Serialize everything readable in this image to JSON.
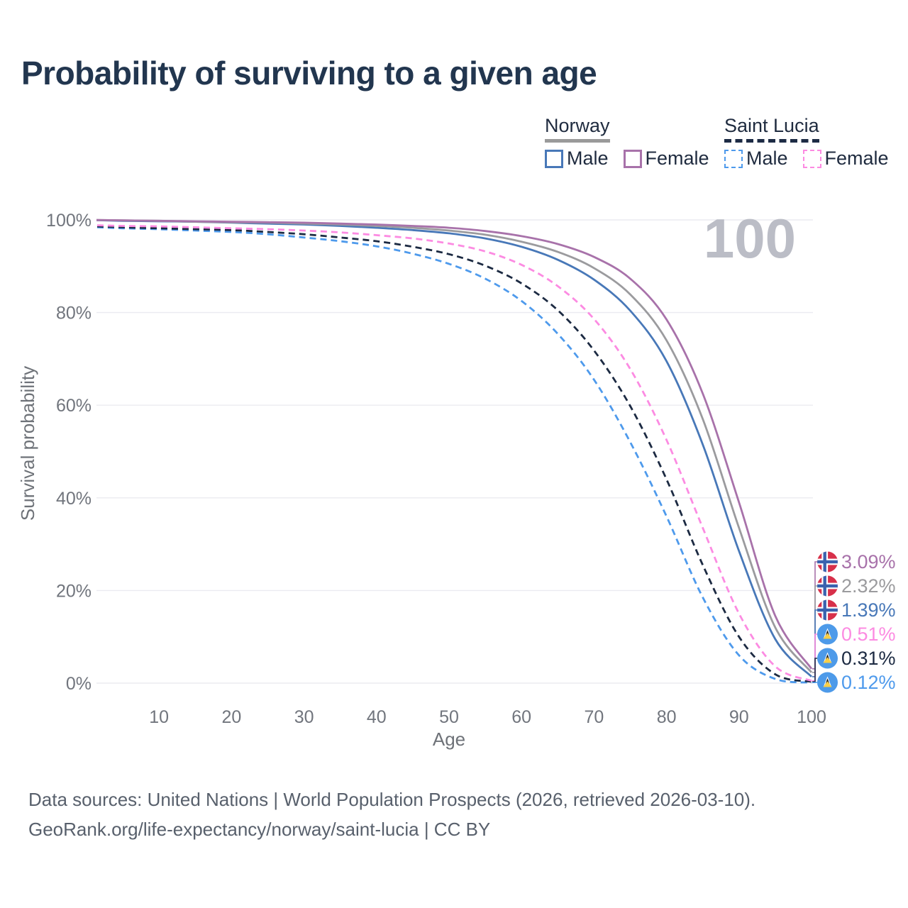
{
  "title": "Probability of surviving to a given age",
  "legend": {
    "norway": {
      "title": "Norway",
      "male": "Male",
      "female": "Female"
    },
    "saint_lucia": {
      "title": "Saint Lucia",
      "male": "Male",
      "female": "Female"
    }
  },
  "footer": {
    "line1": "Data sources: United Nations | World Population Prospects (2026, retrieved 2026-03-10).",
    "line2": "GeoRank.org/life-expectancy/norway/saint-lucia | CC BY"
  },
  "flags": {
    "norway": {
      "red": "#D7304A",
      "white": "#FFFFFF",
      "blue": "#3A62AE"
    },
    "saint_lucia": {
      "blue": "#4D9AE9",
      "white": "#FFFFFF",
      "black": "#15171A",
      "yellow": "#F8CE46"
    }
  },
  "chart_data": {
    "type": "line",
    "title": "Probability of surviving to a given age",
    "xlabel": "Age",
    "ylabel": "Survival probability",
    "xlim": [
      0,
      100
    ],
    "ylim": [
      0,
      100
    ],
    "grid": "horizontal",
    "legend_position": "top-right",
    "watermark": "100",
    "xticks": [
      10,
      20,
      30,
      40,
      50,
      60,
      70,
      80,
      90,
      100
    ],
    "ytick_values": [
      0,
      20,
      40,
      60,
      80,
      100
    ],
    "ytick_labels": [
      "0%",
      "20%",
      "40%",
      "60%",
      "80%",
      "100%"
    ],
    "ages": [
      0,
      5,
      10,
      15,
      20,
      25,
      30,
      35,
      40,
      45,
      50,
      55,
      60,
      65,
      70,
      75,
      80,
      85,
      90,
      95,
      100
    ],
    "series": [
      {
        "id": "norway-female",
        "name": "Norway Female",
        "country": "Norway",
        "sex": "Female",
        "color": "#A872AA",
        "dash": "solid",
        "flag": "norway",
        "end_label": "3.09%",
        "values": [
          100,
          99.9,
          99.8,
          99.7,
          99.6,
          99.5,
          99.4,
          99.2,
          99.0,
          98.7,
          98.3,
          97.6,
          96.5,
          94.8,
          92.0,
          87.3,
          78.5,
          62.5,
          39.0,
          14.5,
          3.09
        ]
      },
      {
        "id": "norway-total",
        "name": "Norway Both sexes",
        "country": "Norway",
        "sex": "Both",
        "color": "#9B9B9E",
        "dash": "solid",
        "flag": "norway",
        "end_label": "2.32%",
        "values": [
          100,
          99.9,
          99.8,
          99.6,
          99.5,
          99.4,
          99.2,
          99.0,
          98.7,
          98.3,
          97.7,
          96.8,
          95.3,
          93.1,
          89.6,
          83.9,
          74.0,
          57.0,
          33.5,
          12.0,
          2.32
        ]
      },
      {
        "id": "norway-male",
        "name": "Norway Male",
        "country": "Norway",
        "sex": "Male",
        "color": "#4878B8",
        "dash": "solid",
        "flag": "norway",
        "end_label": "1.39%",
        "values": [
          100,
          99.8,
          99.7,
          99.6,
          99.4,
          99.2,
          99.0,
          98.7,
          98.3,
          97.8,
          97.1,
          96.0,
          94.2,
          91.4,
          87.1,
          80.4,
          69.5,
          51.5,
          28.5,
          9.5,
          1.39
        ]
      },
      {
        "id": "saint-lucia-female",
        "name": "Saint Lucia Female",
        "country": "Saint Lucia",
        "sex": "Female",
        "color": "#FC8BE2",
        "dash": "dashed",
        "flag": "saint_lucia",
        "end_label": "0.51%",
        "values": [
          98.9,
          98.7,
          98.6,
          98.4,
          98.2,
          98.0,
          97.7,
          97.3,
          96.7,
          96.0,
          94.9,
          93.2,
          90.3,
          85.7,
          78.6,
          67.8,
          52.5,
          33.5,
          15.0,
          3.6,
          0.51
        ]
      },
      {
        "id": "saint-lucia-total",
        "name": "Saint Lucia Both sexes",
        "country": "Saint Lucia",
        "sex": "Both",
        "color": "#1C2A42",
        "dash": "dashed",
        "flag": "saint_lucia",
        "end_label": "0.31%",
        "values": [
          98.7,
          98.4,
          98.2,
          98.0,
          97.8,
          97.4,
          96.9,
          96.2,
          95.4,
          94.2,
          92.6,
          90.1,
          86.3,
          80.5,
          71.8,
          59.8,
          44.0,
          25.5,
          10.0,
          1.9,
          0.31
        ]
      },
      {
        "id": "saint-lucia-male",
        "name": "Saint Lucia Male",
        "country": "Saint Lucia",
        "sex": "Male",
        "color": "#4E9AEC",
        "dash": "dashed",
        "flag": "saint_lucia",
        "end_label": "0.12%",
        "values": [
          98.5,
          98.2,
          98.0,
          97.7,
          97.4,
          96.9,
          96.2,
          95.4,
          94.3,
          92.7,
          90.5,
          87.3,
          82.5,
          75.4,
          65.5,
          52.0,
          36.0,
          18.5,
          6.0,
          0.9,
          0.12
        ]
      }
    ]
  }
}
